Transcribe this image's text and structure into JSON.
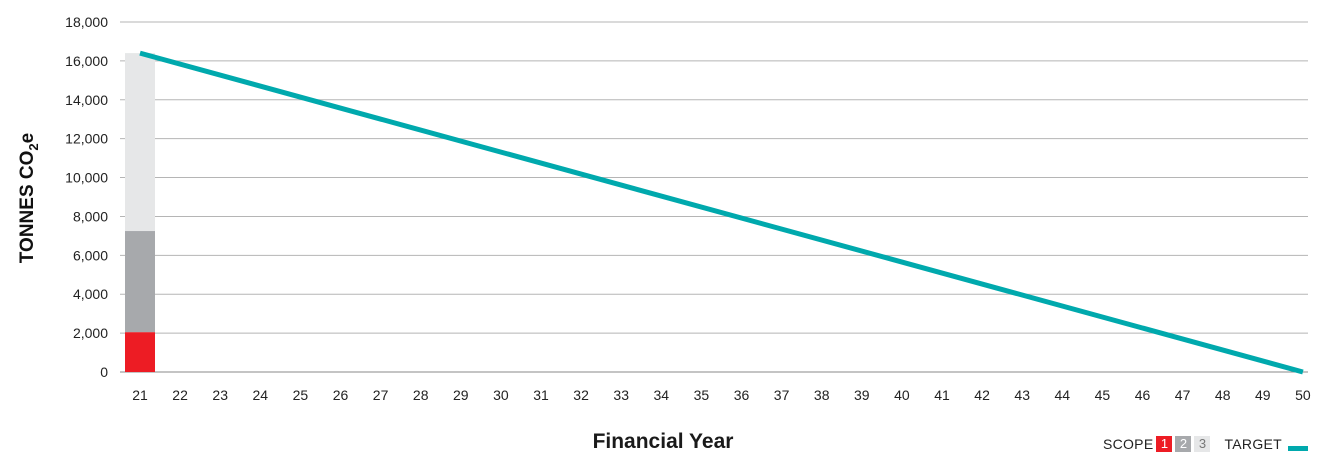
{
  "chart_data": {
    "type": "bar",
    "title": "",
    "xlabel": "Financial Year",
    "ylabel_parts": [
      "TONNES CO",
      "2",
      "e"
    ],
    "ylim": [
      0,
      18000
    ],
    "yticks": [
      0,
      2000,
      4000,
      6000,
      8000,
      10000,
      12000,
      14000,
      16000,
      18000
    ],
    "ytick_labels": [
      "0",
      "2,000",
      "4,000",
      "6,000",
      "8,000",
      "10,000",
      "12,000",
      "14,000",
      "16,000",
      "18,000"
    ],
    "categories": [
      "21",
      "22",
      "23",
      "24",
      "25",
      "26",
      "27",
      "28",
      "29",
      "30",
      "31",
      "32",
      "33",
      "34",
      "35",
      "36",
      "37",
      "38",
      "39",
      "40",
      "41",
      "42",
      "43",
      "44",
      "45",
      "46",
      "47",
      "48",
      "49",
      "50"
    ],
    "stacked_series": [
      {
        "name": "1",
        "color": "#ed1c24",
        "values": [
          2050
        ]
      },
      {
        "name": "2",
        "color": "#a7a9ac",
        "values": [
          5200
        ]
      },
      {
        "name": "3",
        "color": "#e6e7e8",
        "values": [
          9150
        ]
      }
    ],
    "target_line": {
      "name": "TARGET",
      "color": "#00a9ad",
      "x": [
        "21",
        "50"
      ],
      "y": [
        16400,
        0
      ]
    },
    "grid": true,
    "legend": {
      "position": "bottom-right",
      "scope_label": "SCOPE",
      "target_label": "TARGET"
    }
  }
}
